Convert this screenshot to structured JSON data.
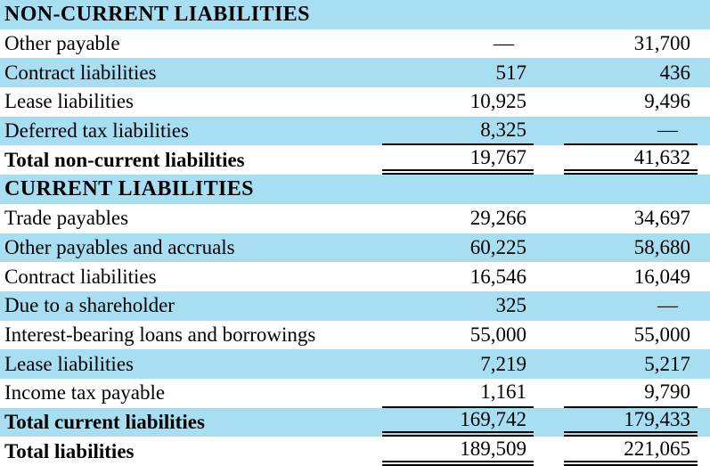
{
  "colors": {
    "row_alt": "#a8def2",
    "text": "#000000",
    "rule": "#000000",
    "background": "#ffffff"
  },
  "table": {
    "dash": "—",
    "rows": [
      {
        "label": "NON-CURRENT LIABILITIES",
        "v1": "",
        "v2": "",
        "style": "section"
      },
      {
        "label": "Other payable",
        "v1": "—",
        "v2": "31,700",
        "style": "item"
      },
      {
        "label": "Contract liabilities",
        "v1": "517",
        "v2": "436",
        "style": "item"
      },
      {
        "label": "Lease liabilities",
        "v1": "10,925",
        "v2": "9,496",
        "style": "item"
      },
      {
        "label": "Deferred tax liabilities",
        "v1": "8,325",
        "v2": "—",
        "style": "item",
        "rule": "single"
      },
      {
        "label": "Total non-current liabilities",
        "v1": "19,767",
        "v2": "41,632",
        "style": "total",
        "rule": "double"
      },
      {
        "label": "CURRENT LIABILITIES",
        "v1": "",
        "v2": "",
        "style": "section"
      },
      {
        "label": "Trade payables",
        "v1": "29,266",
        "v2": "34,697",
        "style": "item"
      },
      {
        "label": "Other payables and accruals",
        "v1": "60,225",
        "v2": "58,680",
        "style": "item"
      },
      {
        "label": "Contract liabilities",
        "v1": "16,546",
        "v2": "16,049",
        "style": "item"
      },
      {
        "label": "Due to a shareholder",
        "v1": "325",
        "v2": "—",
        "style": "item"
      },
      {
        "label": "Interest-bearing loans and borrowings",
        "v1": "55,000",
        "v2": "55,000",
        "style": "item"
      },
      {
        "label": "Lease liabilities",
        "v1": "7,219",
        "v2": "5,217",
        "style": "item"
      },
      {
        "label": "Income tax payable",
        "v1": "1,161",
        "v2": "9,790",
        "style": "item",
        "rule": "single"
      },
      {
        "label": "Total current liabilities",
        "v1": "169,742",
        "v2": "179,433",
        "style": "total",
        "rule": "double"
      },
      {
        "label": "Total liabilities",
        "v1": "189,509",
        "v2": "221,065",
        "style": "total",
        "rule": "double"
      }
    ]
  }
}
